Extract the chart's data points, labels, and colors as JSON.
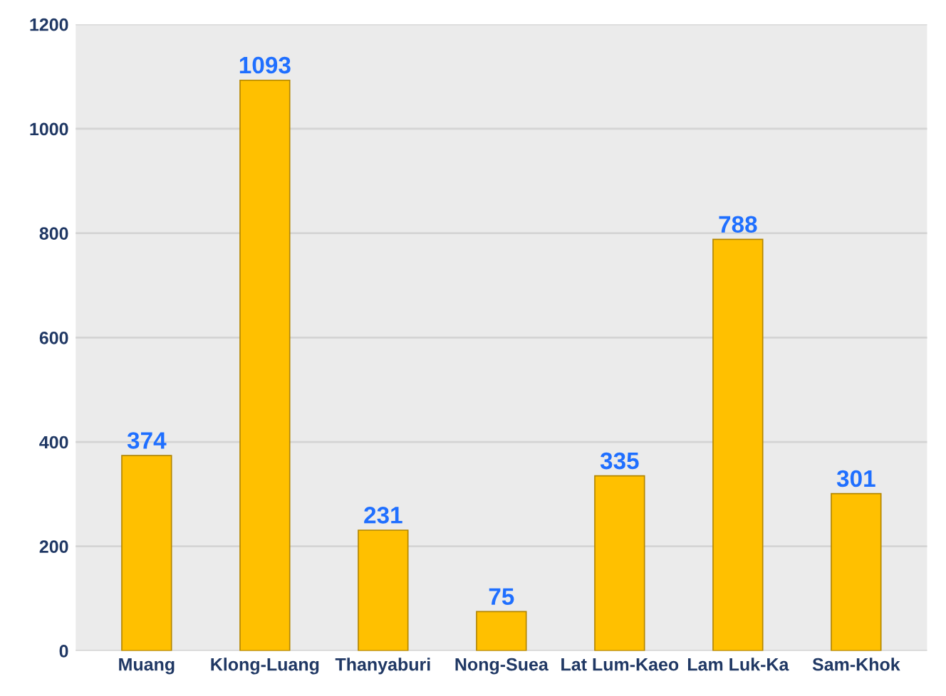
{
  "chart_data": {
    "type": "bar",
    "categories": [
      "Muang",
      "Klong-Luang",
      "Thanyaburi",
      "Nong-Suea",
      "Lat Lum-Kaeo",
      "Lam Luk-Ka",
      "Sam-Khok"
    ],
    "values": [
      374,
      1093,
      231,
      75,
      335,
      788,
      301
    ],
    "color": "#ffc000",
    "ylim": [
      0,
      1200
    ],
    "yticks": [
      0,
      200,
      400,
      600,
      800,
      1000,
      1200
    ],
    "grid": "y",
    "data_labels": true
  }
}
